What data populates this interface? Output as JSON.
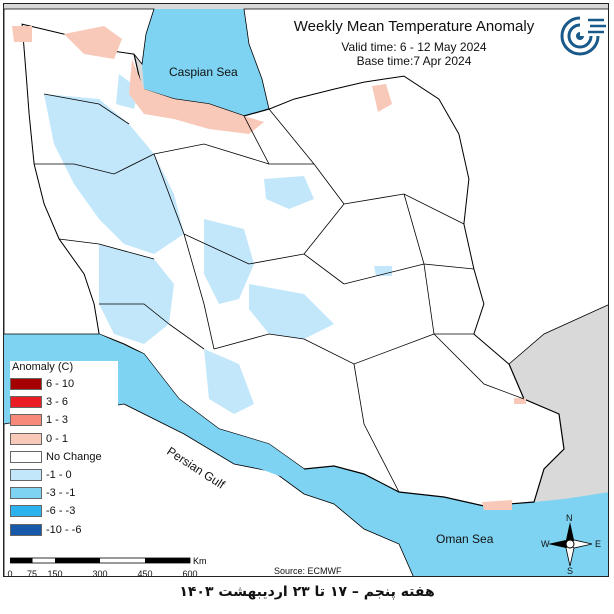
{
  "header": {
    "title": "Weekly Mean Temperature Anomaly",
    "valid_time": "Valid time: 6 - 12 May 2024",
    "base_time": "Base time:7 Apr 2024"
  },
  "labels": {
    "caspian": "Caspian Sea",
    "persian_gulf": "Persian Gulf",
    "oman_sea": "Oman Sea"
  },
  "legend": {
    "title": "Anomaly (C)",
    "items": [
      {
        "label": "6 - 10",
        "color": "#a50000"
      },
      {
        "label": "3 - 6",
        "color": "#ec1c24"
      },
      {
        "label": "1 - 3",
        "color": "#f7897a"
      },
      {
        "label": "0 - 1",
        "color": "#f8c9b9"
      },
      {
        "label": "No Change",
        "color": "#ffffff"
      },
      {
        "label": "-1 - 0",
        "color": "#c3e7fa"
      },
      {
        "label": "-3 - -1",
        "color": "#7fd3f2"
      },
      {
        "label": "-6 - -3",
        "color": "#2cb2ec"
      },
      {
        "label": "-10 - -6",
        "color": "#1659a8"
      }
    ]
  },
  "scale": {
    "ticks": [
      "0",
      "75",
      "150",
      "300",
      "450",
      "600"
    ],
    "unit": "Km"
  },
  "compass": {
    "n": "N",
    "s": "S",
    "e": "E",
    "w": "W"
  },
  "source": "Source: ECMWF",
  "caption": "هفته پنجم – ۱۷ تا ۲۳ اردیبهشت ۱۴۰۳",
  "colors": {
    "sea": "#7fd3f2",
    "outside": "#d9d9d9",
    "land": "#ffffff",
    "cold_light": "#c3e7fa",
    "warm_light": "#f8c9b9"
  }
}
